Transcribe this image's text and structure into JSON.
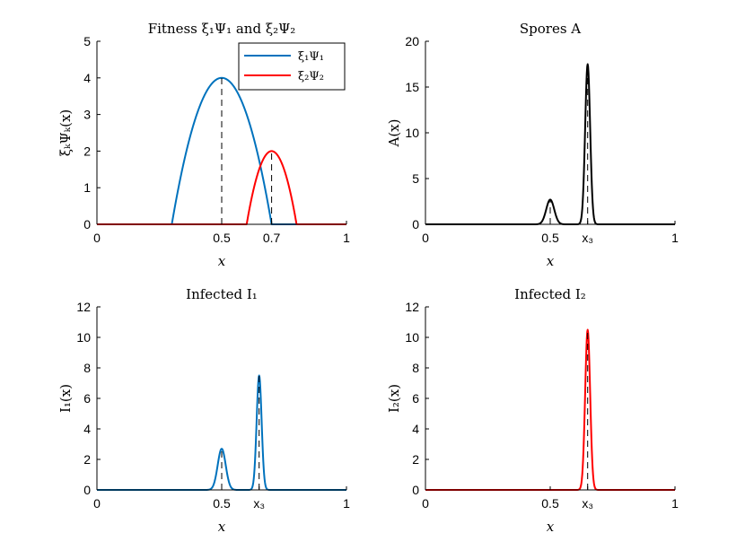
{
  "chart_data": [
    {
      "type": "line",
      "title": "Fitness ξ₁Ψ₁ and ξ₂Ψ₂",
      "xlabel": "x",
      "ylabel": "ξₖΨₖ(x)",
      "xlim": [
        0,
        1
      ],
      "ylim": [
        0,
        5
      ],
      "xticks": [
        0,
        0.5,
        0.7,
        1
      ],
      "xtick_labels": [
        "0",
        "0.5",
        "0.7",
        "1"
      ],
      "yticks": [
        0,
        1,
        2,
        3,
        4,
        5
      ],
      "ytick_labels": [
        "0",
        "1",
        "2",
        "3",
        "4",
        "5"
      ],
      "legend": "top-right",
      "series": [
        {
          "name": "ξ₁Ψ₁",
          "color": "#0072BD",
          "shape": "parabola",
          "peak_x": 0.5,
          "peak_y": 4,
          "support": [
            0.3,
            0.7
          ]
        },
        {
          "name": "ξ₂Ψ₂",
          "color": "#FF0000",
          "shape": "parabola",
          "peak_x": 0.7,
          "peak_y": 2,
          "support": [
            0.6,
            0.8
          ]
        }
      ],
      "markers": [
        {
          "x": 0.5,
          "y": 4
        },
        {
          "x": 0.7,
          "y": 2
        }
      ]
    },
    {
      "type": "line",
      "title": "Spores A",
      "xlabel": "x",
      "ylabel": "A(x)",
      "xlim": [
        0,
        1
      ],
      "ylim": [
        0,
        20
      ],
      "xticks": [
        0,
        0.5,
        0.65,
        1
      ],
      "xtick_labels": [
        "0",
        "0.5",
        "x₃",
        "1"
      ],
      "yticks": [
        0,
        5,
        10,
        15,
        20
      ],
      "ytick_labels": [
        "0",
        "5",
        "10",
        "15",
        "20"
      ],
      "series": [
        {
          "name": "A",
          "color": "#000000",
          "shape": "gaussians",
          "peaks": [
            {
              "x": 0.5,
              "height": 2.7,
              "width": 0.016
            },
            {
              "x": 0.65,
              "height": 17.5,
              "width": 0.01
            }
          ]
        }
      ],
      "markers": [
        {
          "x": 0.5,
          "y": 2.7
        },
        {
          "x": 0.65,
          "y": 17.5
        }
      ]
    },
    {
      "type": "line",
      "title": "Infected I₁",
      "xlabel": "x",
      "ylabel": "I₁(x)",
      "xlim": [
        0,
        1
      ],
      "ylim": [
        0,
        12
      ],
      "xticks": [
        0,
        0.5,
        0.65,
        1
      ],
      "xtick_labels": [
        "0",
        "0.5",
        "x₃",
        "1"
      ],
      "yticks": [
        0,
        2,
        4,
        6,
        8,
        10,
        12
      ],
      "ytick_labels": [
        "0",
        "2",
        "4",
        "6",
        "8",
        "10",
        "12"
      ],
      "series": [
        {
          "name": "I₁",
          "color": "#0072BD",
          "shape": "gaussians",
          "peaks": [
            {
              "x": 0.5,
              "height": 2.7,
              "width": 0.016
            },
            {
              "x": 0.65,
              "height": 7.5,
              "width": 0.01
            }
          ]
        }
      ],
      "markers": [
        {
          "x": 0.5,
          "y": 2.7
        },
        {
          "x": 0.65,
          "y": 7.5
        }
      ]
    },
    {
      "type": "line",
      "title": "Infected I₂",
      "xlabel": "x",
      "ylabel": "I₂(x)",
      "xlim": [
        0,
        1
      ],
      "ylim": [
        0,
        12
      ],
      "xticks": [
        0,
        0.5,
        0.65,
        1
      ],
      "xtick_labels": [
        "0",
        "0.5",
        "x₃",
        "1"
      ],
      "yticks": [
        0,
        2,
        4,
        6,
        8,
        10,
        12
      ],
      "ytick_labels": [
        "0",
        "2",
        "4",
        "6",
        "8",
        "10",
        "12"
      ],
      "series": [
        {
          "name": "I₂",
          "color": "#FF0000",
          "shape": "gaussians",
          "peaks": [
            {
              "x": 0.65,
              "height": 10.5,
              "width": 0.01
            }
          ]
        }
      ],
      "markers": [
        {
          "x": 0.65,
          "y": 10.5
        }
      ]
    }
  ]
}
